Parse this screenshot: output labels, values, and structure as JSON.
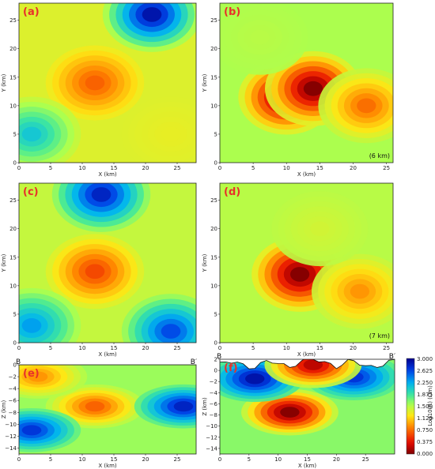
{
  "colorbar": {
    "label": "Log10(R) (Ωm)",
    "ticks": [
      "3.000",
      "2.625",
      "2.250",
      "1.875",
      "1.500",
      "1.125",
      "0.750",
      "0.375",
      "0.000"
    ],
    "range": [
      0,
      3
    ]
  },
  "chart_data": [
    {
      "type": "heatmap",
      "panel_label": "(a)",
      "xlabel": "X (km)",
      "ylabel": "Y (km)",
      "xlim": [
        0,
        28
      ],
      "ylim": [
        0,
        28
      ],
      "xticks": [
        "0",
        "5",
        "10",
        "15",
        "20",
        "25"
      ],
      "yticks": [
        "0",
        "5",
        "10",
        "15",
        "20",
        "25"
      ],
      "annotation": "",
      "features": [
        {
          "x": 12,
          "y": 14,
          "value": 0.7
        },
        {
          "x": 21,
          "y": 26,
          "value": 2.9
        },
        {
          "x": 2,
          "y": 5,
          "value": 2.1
        },
        {
          "x": 24,
          "y": 5,
          "value": 1.3
        }
      ]
    },
    {
      "type": "heatmap",
      "panel_label": "(b)",
      "xlabel": "X (km)",
      "ylabel": "Y (km)",
      "xlim": [
        0,
        26
      ],
      "ylim": [
        0,
        28
      ],
      "xticks": [
        "0",
        "5",
        "10",
        "15",
        "20",
        "25"
      ],
      "yticks": [
        "0",
        "5",
        "10",
        "15",
        "20",
        "25"
      ],
      "annotation": "(6 km)",
      "features": [
        {
          "x": 10,
          "y": 11.5,
          "value": 0.0
        },
        {
          "x": 14,
          "y": 13,
          "value": 0.0
        },
        {
          "x": 22,
          "y": 10,
          "value": 0.75
        },
        {
          "x": 6,
          "y": 22,
          "value": 1.5
        }
      ]
    },
    {
      "type": "heatmap",
      "panel_label": "(c)",
      "xlabel": "X (km)",
      "ylabel": "Y (km)",
      "xlim": [
        0,
        28
      ],
      "ylim": [
        0,
        28
      ],
      "xticks": [
        "0",
        "5",
        "10",
        "15",
        "20",
        "25"
      ],
      "yticks": [
        "0",
        "5",
        "10",
        "15",
        "20",
        "25"
      ],
      "annotation": "",
      "features": [
        {
          "x": 12,
          "y": 12.5,
          "value": 0.6
        },
        {
          "x": 13,
          "y": 26,
          "value": 2.8
        },
        {
          "x": 24,
          "y": 2,
          "value": 2.6
        },
        {
          "x": 2,
          "y": 3,
          "value": 2.3
        }
      ]
    },
    {
      "type": "heatmap",
      "panel_label": "(d)",
      "xlabel": "X (km)",
      "ylabel": "Y (km)",
      "xlim": [
        0,
        26
      ],
      "ylim": [
        0,
        28
      ],
      "xticks": [
        "0",
        "5",
        "10",
        "15",
        "20",
        "25"
      ],
      "yticks": [
        "0",
        "5",
        "10",
        "15",
        "20",
        "25"
      ],
      "annotation": "(7 km)",
      "features": [
        {
          "x": 12,
          "y": 12,
          "value": 0.0
        },
        {
          "x": 21,
          "y": 9,
          "value": 0.9
        },
        {
          "x": 15,
          "y": 20,
          "value": 1.4
        }
      ]
    },
    {
      "type": "heatmap",
      "panel_label": "(e)",
      "section_labels": [
        "B",
        "B′"
      ],
      "xlabel": "X (km)",
      "ylabel": "Z (km)",
      "xlim": [
        0,
        28
      ],
      "ylim": [
        -15,
        0
      ],
      "xticks": [
        "0",
        "5",
        "10",
        "15",
        "20",
        "25"
      ],
      "yticks": [
        "0",
        "−2",
        "−4",
        "−6",
        "−8",
        "−10",
        "−12",
        "−14"
      ],
      "annotation": "",
      "features": [
        {
          "x": 12,
          "y": -7,
          "value": 0.7
        },
        {
          "x": 2,
          "y": -11,
          "value": 2.7
        },
        {
          "x": 26,
          "y": -7,
          "value": 2.8
        },
        {
          "x": 3,
          "y": -2,
          "value": 0.9
        }
      ]
    },
    {
      "type": "heatmap",
      "panel_label": "(f)",
      "section_labels": [
        "B",
        "B′"
      ],
      "xlabel": "X (km)",
      "ylabel": "Z (km)",
      "xlim": [
        0,
        30
      ],
      "ylim": [
        -15,
        2
      ],
      "xticks": [
        "0",
        "5",
        "10",
        "15",
        "20",
        "25"
      ],
      "yticks": [
        "2",
        "0",
        "−2",
        "−4",
        "−6",
        "−8",
        "−10",
        "−12",
        "−14"
      ],
      "annotation": "",
      "features": [
        {
          "x": 12,
          "y": -7.5,
          "value": 0.0
        },
        {
          "x": 6,
          "y": -1.5,
          "value": 2.9
        },
        {
          "x": 23,
          "y": -1.2,
          "value": 2.7
        },
        {
          "x": 16,
          "y": 1,
          "value": 0.2
        }
      ]
    }
  ]
}
